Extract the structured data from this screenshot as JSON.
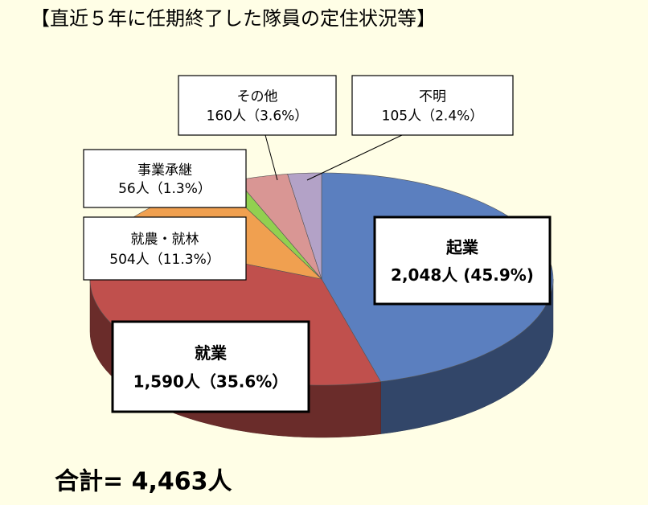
{
  "chart_data": {
    "type": "pie",
    "title": "【直近５年に任期終了した隊員の定住状況等】",
    "categories": [
      "起業",
      "就業",
      "就農・就林",
      "事業承継",
      "その他",
      "不明"
    ],
    "values": [
      2048,
      1590,
      504,
      56,
      160,
      105
    ],
    "value_labels": [
      "2,048人 (45.9%)",
      "1,590人（35.6%）",
      "504人（11.3%）",
      "56人（1.3%）",
      "160人（3.6%）",
      "105人（2.4%）"
    ],
    "colors": [
      "#5b7fbf",
      "#c0504d",
      "#f0a050",
      "#92d050",
      "#d99694",
      "#b3a2c7"
    ],
    "total_label": "合計=  4,463人"
  }
}
